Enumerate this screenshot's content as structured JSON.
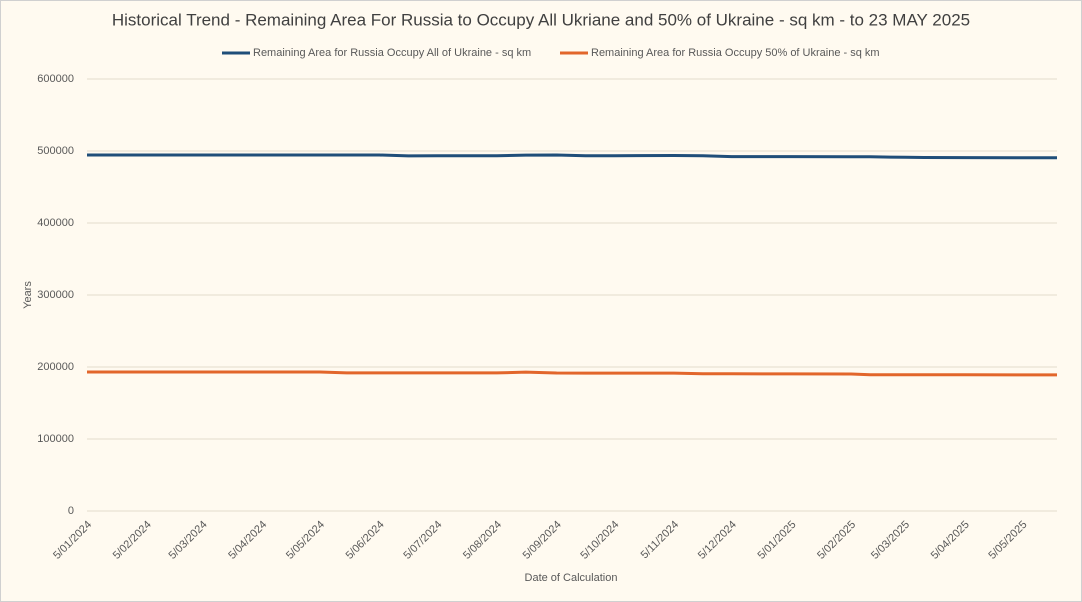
{
  "chart_data": {
    "type": "line",
    "title": "Historical Trend - Remaining Area For Russia to Occupy All Ukriane and 50% of Ukraine - sq km - to 23 MAY 2025",
    "x_label": "Date of Calculation",
    "y_label": "Years",
    "x": [
      "2024-01-05",
      "2024-02-05",
      "2024-03-05",
      "2024-04-05",
      "2024-05-05",
      "2024-05-19",
      "2024-06-05",
      "2024-06-20",
      "2024-07-05",
      "2024-08-05",
      "2024-08-20",
      "2024-09-05",
      "2024-09-20",
      "2024-10-05",
      "2024-11-05",
      "2024-11-20",
      "2024-12-05",
      "2025-01-05",
      "2025-02-05",
      "2025-02-15",
      "2025-03-05",
      "2025-03-15",
      "2025-04-05",
      "2025-05-05",
      "2025-05-23"
    ],
    "series": [
      {
        "name": "Remaining Area for Russia Occupy All of Ukraine - sq km",
        "color": "#1f4e79",
        "values": [
          494500,
          494500,
          494500,
          494500,
          494500,
          494500,
          494500,
          493200,
          493300,
          493500,
          494300,
          494500,
          493500,
          493500,
          493800,
          493500,
          492200,
          492200,
          492100,
          492000,
          491200,
          491000,
          490900,
          490700,
          490500
        ]
      },
      {
        "name": "Remaining Area for Russia Occupy 50% of Ukraine - sq km",
        "color": "#e2662b",
        "values": [
          193000,
          193000,
          193000,
          193000,
          193000,
          191800,
          191800,
          191800,
          191800,
          191800,
          192900,
          191700,
          191500,
          191500,
          191500,
          190500,
          190500,
          190400,
          190300,
          189300,
          189200,
          189200,
          189100,
          189000,
          189000
        ]
      }
    ],
    "xlim": [
      "2024-01-05",
      "2025-05-23"
    ],
    "xticks": [
      {
        "value": "2024-01-05",
        "label": "5/01/2024"
      },
      {
        "value": "2024-02-05",
        "label": "5/02/2024"
      },
      {
        "value": "2024-03-05",
        "label": "5/03/2024"
      },
      {
        "value": "2024-04-05",
        "label": "5/04/2024"
      },
      {
        "value": "2024-05-05",
        "label": "5/05/2024"
      },
      {
        "value": "2024-06-05",
        "label": "5/06/2024"
      },
      {
        "value": "2024-07-05",
        "label": "5/07/2024"
      },
      {
        "value": "2024-08-05",
        "label": "5/08/2024"
      },
      {
        "value": "2024-09-05",
        "label": "5/09/2024"
      },
      {
        "value": "2024-10-05",
        "label": "5/10/2024"
      },
      {
        "value": "2024-11-05",
        "label": "5/11/2024"
      },
      {
        "value": "2024-12-05",
        "label": "5/12/2024"
      },
      {
        "value": "2025-01-05",
        "label": "5/01/2025"
      },
      {
        "value": "2025-02-05",
        "label": "5/02/2025"
      },
      {
        "value": "2025-03-05",
        "label": "5/03/2025"
      },
      {
        "value": "2025-04-05",
        "label": "5/04/2025"
      },
      {
        "value": "2025-05-05",
        "label": "5/05/2025"
      }
    ],
    "ylim": [
      0,
      600000
    ],
    "yticks": [
      0,
      100000,
      200000,
      300000,
      400000,
      500000,
      600000
    ],
    "grid": true,
    "legend": "top"
  }
}
